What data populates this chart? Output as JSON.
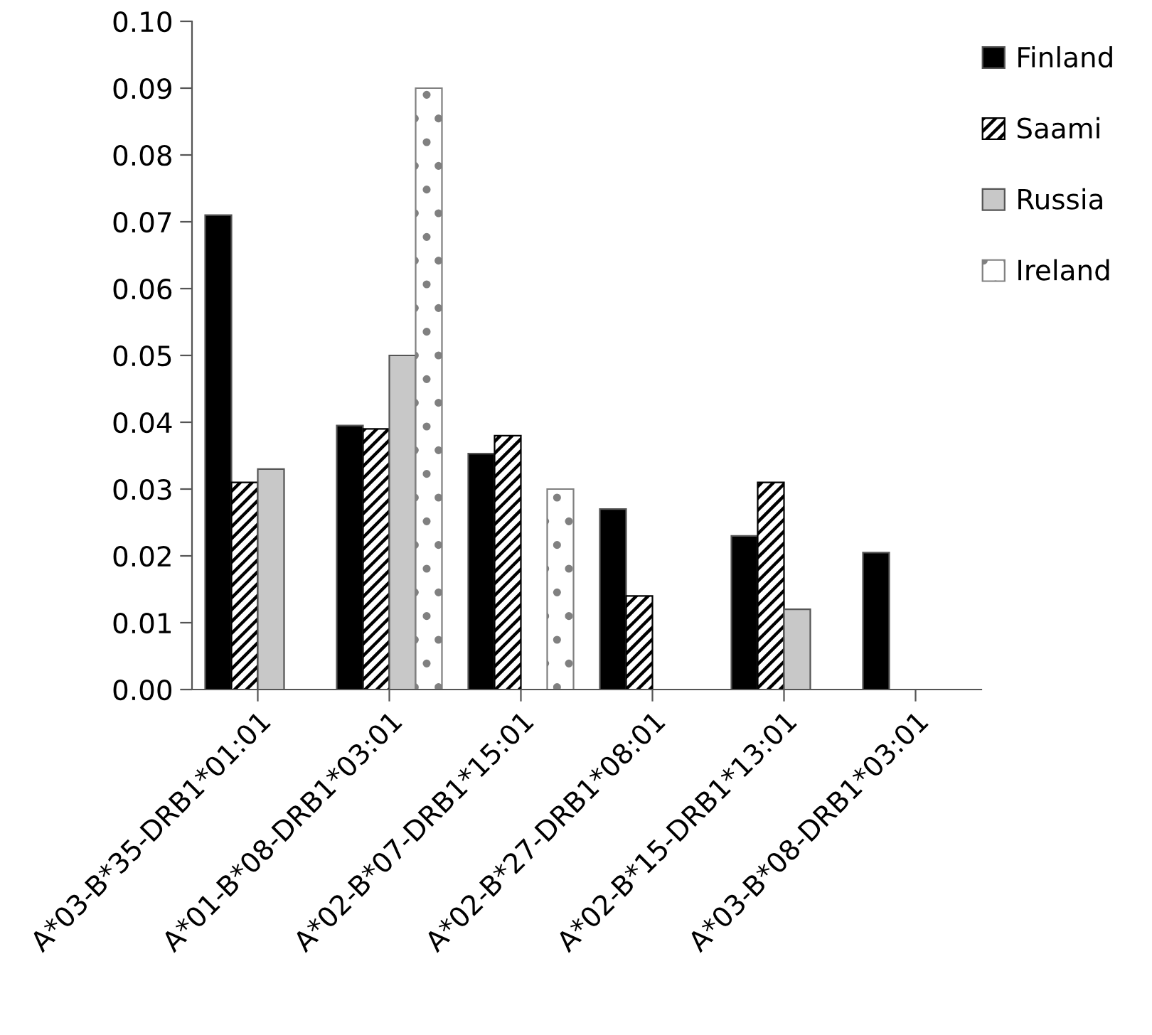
{
  "chart_data": {
    "type": "bar",
    "categories": [
      "A*03-B*35-DRB1*01:01",
      "A*01-B*08-DRB1*03:01",
      "A*02-B*07-DRB1*15:01",
      "A*02-B*27-DRB1*08:01",
      "A*02-B*15-DRB1*13:01",
      "A*03-B*08-DRB1*03:01"
    ],
    "series": [
      {
        "name": "Finland",
        "color": "#000000",
        "values": [
          0.071,
          0.0395,
          0.0353,
          0.027,
          0.023,
          0.0205
        ]
      },
      {
        "name": "Saami",
        "color": "#000000",
        "values": [
          0.031,
          0.039,
          0.038,
          0.014,
          0.031,
          null
        ]
      },
      {
        "name": "Russia",
        "color": "#c8c8c8",
        "values": [
          0.033,
          0.05,
          null,
          null,
          0.012,
          null
        ]
      },
      {
        "name": "Ireland",
        "color": "#808080",
        "values": [
          null,
          0.09,
          0.03,
          null,
          null,
          null
        ]
      }
    ],
    "ylim": [
      0,
      0.1
    ],
    "yticks": [
      {
        "value": 0,
        "label": "0.00"
      },
      {
        "value": 0.01,
        "label": "0.01"
      },
      {
        "value": 0.02,
        "label": "0.02"
      },
      {
        "value": 0.03,
        "label": "0.03"
      },
      {
        "value": 0.04,
        "label": "0.04"
      },
      {
        "value": 0.05,
        "label": "0.05"
      },
      {
        "value": 0.06,
        "label": "0.06"
      },
      {
        "value": 0.07,
        "label": "0.07"
      },
      {
        "value": 0.08,
        "label": "0.08"
      },
      {
        "value": 0.09,
        "label": "0.09"
      },
      {
        "value": 0.1,
        "label": "0.10"
      }
    ],
    "grid": false,
    "legend": "top right"
  }
}
